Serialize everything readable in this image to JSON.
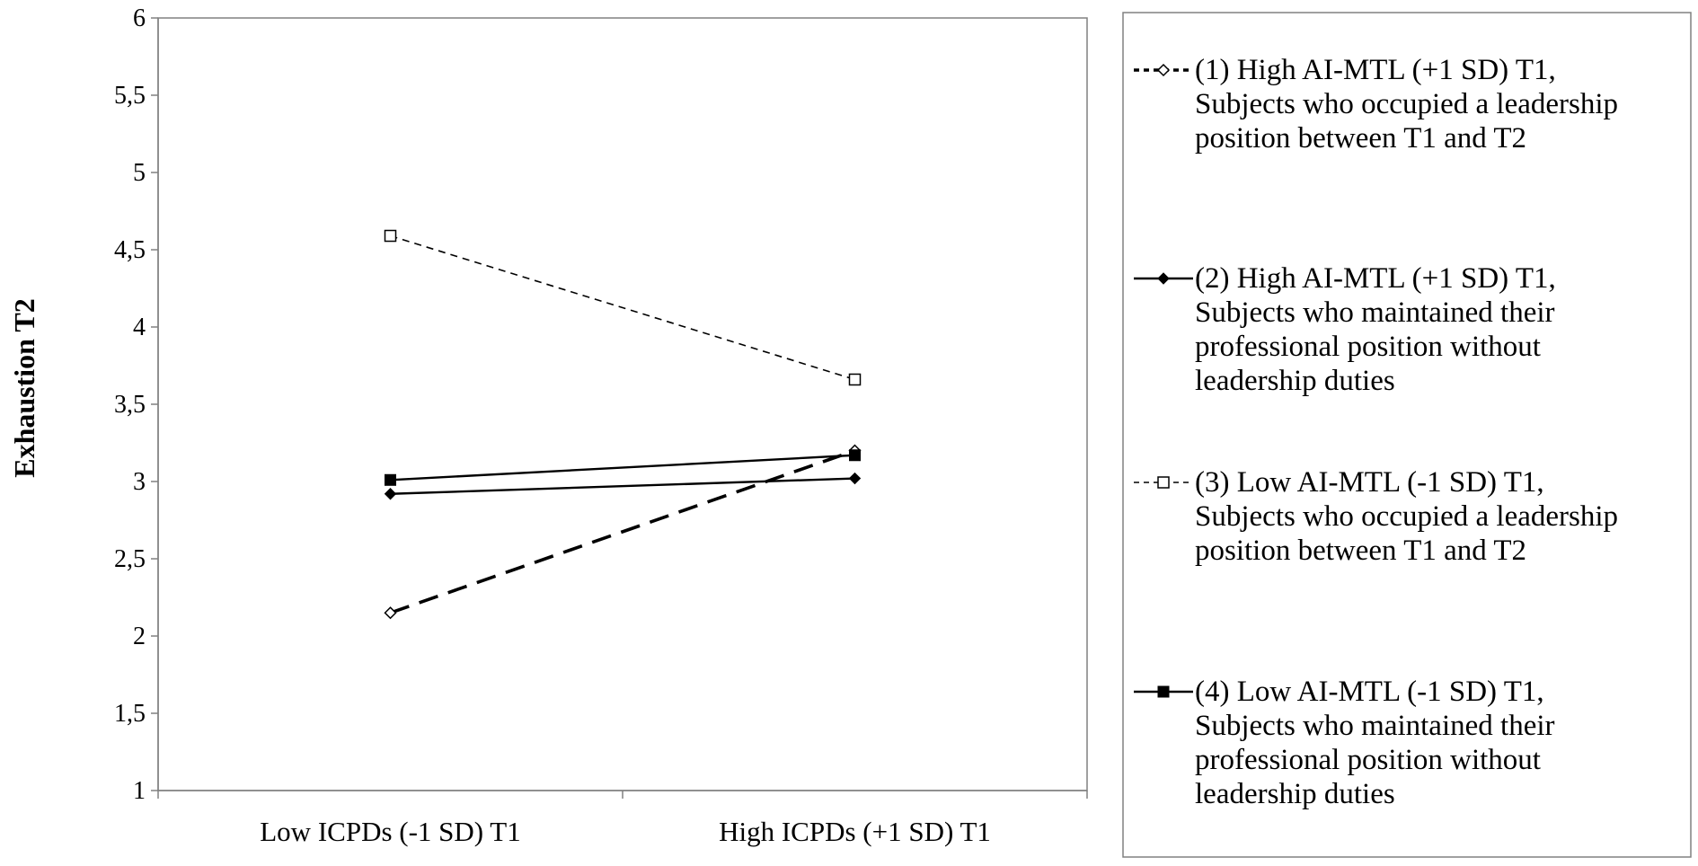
{
  "chart_data": {
    "type": "line",
    "title": "",
    "xlabel": "",
    "ylabel": "Exhaustion T2",
    "ylim": [
      1,
      6
    ],
    "y_ticks": [
      "1",
      "1,5",
      "2",
      "2,5",
      "3",
      "3,5",
      "4",
      "4,5",
      "5",
      "5,5",
      "6"
    ],
    "y_tick_values": [
      1,
      1.5,
      2,
      2.5,
      3,
      3.5,
      4,
      4.5,
      5,
      5.5,
      6
    ],
    "categories": [
      "Low ICPDs (-1 SD) T1",
      "High ICPDs (+1 SD) T1"
    ],
    "grid": false,
    "legend_position": "right",
    "series": [
      {
        "name": "(1) High AI-MTL (+1 SD) T1, Subjects who occupied a leadership position between T1 and T2",
        "legend_lines": [
          "(1) High AI-MTL (+1 SD) T1,",
          "Subjects who occupied a leadership",
          "position between T1 and T2"
        ],
        "values": [
          2.15,
          3.2
        ],
        "line_style": "long-dash",
        "marker": "hollow-diamond"
      },
      {
        "name": "(2) High AI-MTL (+1 SD) T1, Subjects who maintained their professional position without leadership duties",
        "legend_lines": [
          "(2) High AI-MTL (+1 SD) T1,",
          "Subjects who maintained their",
          "professional position without",
          "leadership duties"
        ],
        "values": [
          2.92,
          3.02
        ],
        "line_style": "solid",
        "marker": "filled-diamond"
      },
      {
        "name": "(3) Low AI-MTL (-1 SD) T1, Subjects who occupied a leadership position between T1 and T2",
        "legend_lines": [
          "(3) Low AI-MTL (-1 SD) T1,",
          "Subjects who occupied a leadership",
          "position between T1 and T2"
        ],
        "values": [
          4.59,
          3.66
        ],
        "line_style": "short-dash",
        "marker": "hollow-square"
      },
      {
        "name": "(4) Low AI-MTL (-1 SD) T1, Subjects who maintained their professional position without leadership duties",
        "legend_lines": [
          "(4) Low AI-MTL (-1 SD) T1,",
          "Subjects who maintained their",
          "professional position without",
          "leadership duties"
        ],
        "values": [
          3.01,
          3.17
        ],
        "line_style": "solid",
        "marker": "filled-square"
      }
    ]
  }
}
